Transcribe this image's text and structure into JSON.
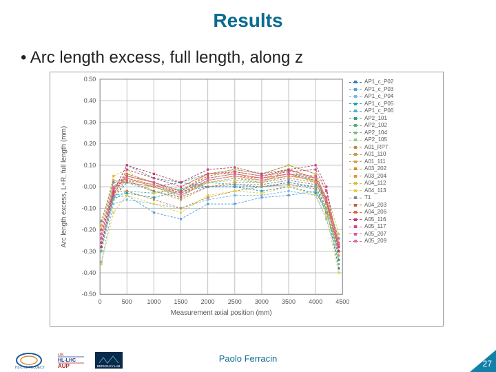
{
  "accent": "#0a6b90",
  "title": {
    "text": "Results",
    "fontsize": 28
  },
  "bullet": {
    "text": "•  Arc length excess, full length, along z",
    "fontsize": 24
  },
  "footer": {
    "author": "Paolo Ferracin",
    "page": "27"
  },
  "chart": {
    "type": "line",
    "xlabel": "Measurement axial position (mm)",
    "ylabel": "Arc length excess, L+R, full length (mm)",
    "label_fontsize": 10,
    "tick_fontsize": 9,
    "xlim": [
      0,
      4500
    ],
    "xtick_step": 500,
    "ylim": [
      -0.5,
      0.5
    ],
    "ytick_step": 0.1,
    "grid_color": "#bfbfbf",
    "line_width": 1.0,
    "marker_size": 3.2,
    "x": [
      25,
      250,
      500,
      1000,
      1500,
      2000,
      2500,
      3000,
      3500,
      4000,
      4200,
      4430
    ],
    "series": [
      {
        "label": "AP1_c_P02",
        "color": "#3a7ab8",
        "y": [
          -0.3,
          -0.05,
          0.02,
          0.0,
          0.02,
          0.0,
          0.0,
          0.0,
          0.02,
          0.0,
          -0.1,
          -0.38
        ]
      },
      {
        "label": "AP1_c_P03",
        "color": "#5ca0d8",
        "y": [
          -0.26,
          -0.05,
          -0.04,
          -0.12,
          -0.15,
          -0.08,
          -0.08,
          -0.05,
          -0.04,
          -0.02,
          -0.12,
          -0.3
        ]
      },
      {
        "label": "AP1_c_P04",
        "color": "#7bb8e6",
        "y": [
          -0.35,
          -0.08,
          -0.06,
          -0.08,
          -0.1,
          -0.06,
          -0.04,
          -0.04,
          -0.02,
          -0.04,
          -0.15,
          -0.34
        ]
      },
      {
        "label": "AP1_c_P05",
        "color": "#2c9fb5",
        "y": [
          -0.22,
          -0.04,
          -0.03,
          -0.05,
          -0.02,
          0.0,
          0.0,
          -0.02,
          0.0,
          -0.03,
          -0.1,
          -0.28
        ]
      },
      {
        "label": "AP1_c_P06",
        "color": "#4fb3c7",
        "y": [
          -0.28,
          -0.06,
          -0.02,
          -0.03,
          -0.01,
          0.02,
          0.01,
          0.0,
          0.01,
          0.0,
          -0.12,
          -0.32
        ]
      },
      {
        "label": "AP2_101",
        "color": "#3a9d7a",
        "y": [
          -0.28,
          -0.02,
          0.1,
          0.04,
          0.02,
          0.06,
          0.08,
          0.06,
          0.1,
          0.06,
          -0.06,
          -0.34
        ]
      },
      {
        "label": "AP2_102",
        "color": "#5aae7c",
        "y": [
          -0.24,
          0.0,
          0.06,
          0.02,
          -0.02,
          0.04,
          0.06,
          0.04,
          0.06,
          0.04,
          -0.08,
          -0.3
        ]
      },
      {
        "label": "AP2_104",
        "color": "#7abd7f",
        "y": [
          -0.3,
          -0.06,
          0.04,
          0.0,
          -0.04,
          0.02,
          0.04,
          0.02,
          0.08,
          0.02,
          -0.1,
          -0.36
        ]
      },
      {
        "label": "AP2_105",
        "color": "#98c97e",
        "y": [
          -0.2,
          0.02,
          0.04,
          0.0,
          -0.04,
          0.02,
          0.03,
          0.02,
          0.05,
          0.03,
          -0.05,
          -0.26
        ]
      },
      {
        "label": "A01_RP7",
        "color": "#c08a4a",
        "y": [
          -0.22,
          -0.02,
          -0.02,
          -0.06,
          -0.1,
          -0.05,
          -0.02,
          0.0,
          0.01,
          -0.01,
          -0.12,
          -0.3
        ]
      },
      {
        "label": "A01_110",
        "color": "#c8964f",
        "y": [
          -0.2,
          0.0,
          0.03,
          -0.02,
          -0.06,
          0.0,
          0.02,
          0.02,
          0.04,
          0.02,
          -0.08,
          -0.28
        ]
      },
      {
        "label": "A01_111",
        "color": "#d1a35a",
        "y": [
          -0.18,
          0.03,
          0.02,
          0.0,
          -0.03,
          0.02,
          0.04,
          0.03,
          0.05,
          0.03,
          -0.06,
          -0.24
        ]
      },
      {
        "label": "A03_202",
        "color": "#d7882e",
        "y": [
          -0.24,
          -0.02,
          0.06,
          0.02,
          -0.02,
          0.06,
          0.06,
          0.04,
          0.08,
          0.04,
          -0.06,
          -0.3
        ]
      },
      {
        "label": "A03_204",
        "color": "#e19a3a",
        "y": [
          -0.26,
          -0.04,
          0.04,
          0.0,
          -0.05,
          0.03,
          0.05,
          0.03,
          0.06,
          0.02,
          -0.08,
          -0.32
        ]
      },
      {
        "label": "A04_112",
        "color": "#d9c23a",
        "y": [
          -0.18,
          0.05,
          0.08,
          -0.03,
          0.0,
          0.06,
          0.08,
          0.06,
          0.1,
          0.06,
          -0.02,
          -0.22
        ]
      },
      {
        "label": "A04_113",
        "color": "#e4d04a",
        "y": [
          -0.36,
          -0.12,
          -0.04,
          -0.08,
          -0.12,
          -0.04,
          -0.02,
          -0.03,
          0.0,
          -0.04,
          -0.14,
          -0.4
        ]
      },
      {
        "label": "T1",
        "color": "#888888",
        "y": [
          -0.16,
          0.02,
          0.02,
          -0.02,
          -0.05,
          0.0,
          0.01,
          0.01,
          0.03,
          0.01,
          -0.06,
          -0.24
        ]
      },
      {
        "label": "A04_203",
        "color": "#c85e3a",
        "y": [
          -0.22,
          -0.03,
          0.05,
          0.02,
          -0.02,
          0.05,
          0.07,
          0.05,
          0.08,
          0.04,
          -0.07,
          -0.28
        ]
      },
      {
        "label": "A04_206",
        "color": "#d86d42",
        "y": [
          -0.2,
          0.0,
          0.03,
          0.01,
          -0.03,
          0.03,
          0.05,
          0.04,
          0.06,
          0.03,
          -0.06,
          -0.26
        ]
      },
      {
        "label": "A05_116",
        "color": "#c03f78",
        "y": [
          -0.28,
          -0.02,
          0.1,
          0.06,
          0.02,
          0.08,
          0.09,
          0.06,
          0.08,
          0.1,
          0.0,
          -0.3
        ]
      },
      {
        "label": "A05_117",
        "color": "#cf4a8a",
        "y": [
          -0.26,
          -0.04,
          0.08,
          0.04,
          0.0,
          0.06,
          0.07,
          0.05,
          0.07,
          0.08,
          -0.02,
          -0.28
        ]
      },
      {
        "label": "A05_207",
        "color": "#d95c96",
        "y": [
          -0.24,
          -0.01,
          0.05,
          0.02,
          -0.03,
          0.04,
          0.06,
          0.04,
          0.06,
          0.05,
          -0.05,
          -0.27
        ]
      },
      {
        "label": "A05_209",
        "color": "#e370a4",
        "y": [
          -0.22,
          0.0,
          0.04,
          0.01,
          -0.04,
          0.03,
          0.05,
          0.03,
          0.05,
          0.04,
          -0.06,
          -0.26
        ]
      }
    ]
  }
}
